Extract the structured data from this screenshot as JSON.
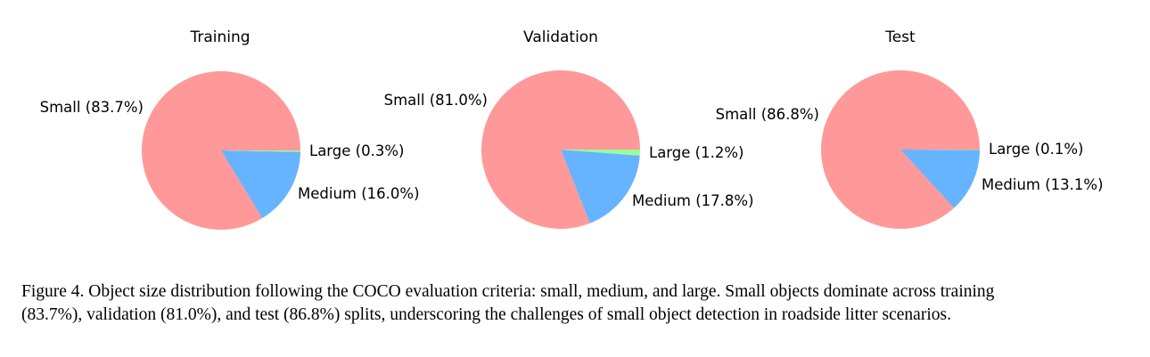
{
  "colors": {
    "Small": "#ff9999",
    "Medium": "#66b3ff",
    "Large": "#99ff99"
  },
  "chart_data": [
    {
      "type": "pie",
      "title": "Training",
      "categories": [
        "Small",
        "Medium",
        "Large"
      ],
      "values": [
        83.7,
        16.0,
        0.3
      ],
      "labels": [
        "Small (83.7%)",
        "Medium (16.0%)",
        "Large (0.3%)"
      ],
      "start_angle_deg": 0,
      "direction": "counterclockwise"
    },
    {
      "type": "pie",
      "title": "Validation",
      "categories": [
        "Small",
        "Medium",
        "Large"
      ],
      "values": [
        81.0,
        17.8,
        1.2
      ],
      "labels": [
        "Small (81.0%)",
        "Medium (17.8%)",
        "Large (1.2%)"
      ],
      "start_angle_deg": 0,
      "direction": "counterclockwise"
    },
    {
      "type": "pie",
      "title": "Test",
      "categories": [
        "Small",
        "Medium",
        "Large"
      ],
      "values": [
        86.8,
        13.1,
        0.1
      ],
      "labels": [
        "Small (86.8%)",
        "Medium (13.1%)",
        "Large (0.1%)"
      ],
      "start_angle_deg": 0,
      "direction": "counterclockwise"
    }
  ],
  "caption": {
    "line1": "Figure 4. Object size distribution following the COCO evaluation criteria: small, medium, and large. Small objects dominate across training",
    "line2": "(83.7%), validation (81.0%), and test (86.8%) splits, underscoring the challenges of small object detection in roadside litter scenarios."
  }
}
